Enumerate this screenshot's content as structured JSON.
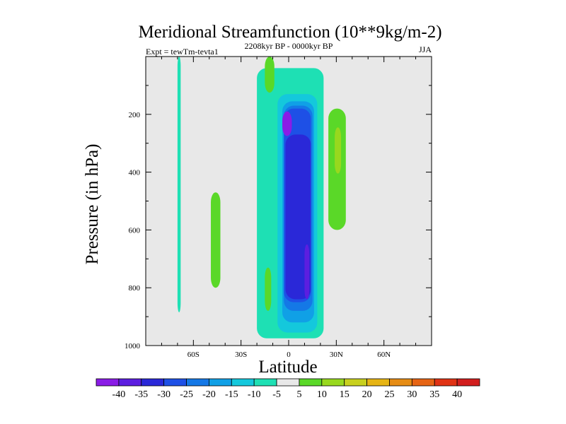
{
  "chart_data": {
    "type": "contour",
    "title": "Meridional Streamfunction (10**9kg/m-2)",
    "subtitle_left": "Expt = tewTm-tevta1",
    "subtitle_center": "2208kyr BP - 0000kyr BP",
    "subtitle_right": "JJA",
    "xlabel": "Latitude",
    "ylabel": "Pressure (in hPa)",
    "xlim": [
      -90,
      90
    ],
    "ylim": [
      1000,
      0
    ],
    "x_ticks": [
      {
        "value": -60,
        "label": "60S"
      },
      {
        "value": -30,
        "label": "30S"
      },
      {
        "value": 0,
        "label": "0"
      },
      {
        "value": 30,
        "label": "30N"
      },
      {
        "value": 60,
        "label": "60N"
      }
    ],
    "y_ticks": [
      {
        "value": 200,
        "label": "200"
      },
      {
        "value": 400,
        "label": "400"
      },
      {
        "value": 600,
        "label": "600"
      },
      {
        "value": 800,
        "label": "800"
      },
      {
        "value": 1000,
        "label": "1000"
      }
    ],
    "background_color": "#e8e8e8",
    "colorbar": {
      "labels": [
        "-40",
        "-35",
        "-30",
        "-25",
        "-20",
        "-15",
        "-10",
        "-5",
        "5",
        "10",
        "15",
        "20",
        "25",
        "30",
        "35",
        "40"
      ],
      "colors": [
        "#8a1ce6",
        "#5c1ee0",
        "#2a28d8",
        "#1e50e6",
        "#1478e6",
        "#10a0e6",
        "#14c8dc",
        "#1ee0b4",
        "#e8e8e8",
        "#5ad828",
        "#98d81e",
        "#c8d01e",
        "#e6b414",
        "#e68c14",
        "#e66414",
        "#e03214",
        "#d21e1e"
      ]
    },
    "regions": [
      {
        "level": "-10 to -5",
        "color": "#1ee0b4",
        "lat": [
          -70,
          -68
        ],
        "p": [
          0,
          885
        ]
      },
      {
        "level": "-10 to -5",
        "color": "#1ee0b4",
        "lat": [
          -20,
          22
        ],
        "p": [
          40,
          975
        ]
      },
      {
        "level": "-15 to -10",
        "color": "#14c8dc",
        "lat": [
          -7,
          18
        ],
        "p": [
          130,
          955
        ]
      },
      {
        "level": "-20 to -15",
        "color": "#10a0e6",
        "lat": [
          -4,
          16
        ],
        "p": [
          155,
          920
        ]
      },
      {
        "level": "-25 to -20",
        "color": "#1478e6",
        "lat": [
          -3,
          15
        ],
        "p": [
          170,
          880
        ]
      },
      {
        "level": "-30 to -25",
        "color": "#1e50e6",
        "lat": [
          -3,
          14
        ],
        "p": [
          180,
          850
        ]
      },
      {
        "level": "-35 to -30",
        "color": "#2a28d8",
        "lat": [
          -2,
          14
        ],
        "p": [
          270,
          840
        ]
      },
      {
        "level": "-40 to -35",
        "color": "#5c1ee0",
        "lat": [
          10,
          13
        ],
        "p": [
          650,
          840
        ]
      },
      {
        "level": "< -40",
        "color": "#8a1ce6",
        "lat": [
          -4,
          2
        ],
        "p": [
          190,
          275
        ]
      },
      {
        "level": "5 to 10",
        "color": "#5ad828",
        "lat": [
          -49,
          -43
        ],
        "p": [
          470,
          800
        ]
      },
      {
        "level": "5 to 10",
        "color": "#5ad828",
        "lat": [
          -15,
          -9
        ],
        "p": [
          0,
          125
        ]
      },
      {
        "level": "5 to 10",
        "color": "#5ad828",
        "lat": [
          -15,
          -11
        ],
        "p": [
          730,
          880
        ]
      },
      {
        "level": "5 to 10",
        "color": "#5ad828",
        "lat": [
          25,
          36
        ],
        "p": [
          180,
          600
        ]
      },
      {
        "level": "10 to 15",
        "color": "#98d81e",
        "lat": [
          29,
          33
        ],
        "p": [
          245,
          405
        ]
      }
    ]
  }
}
